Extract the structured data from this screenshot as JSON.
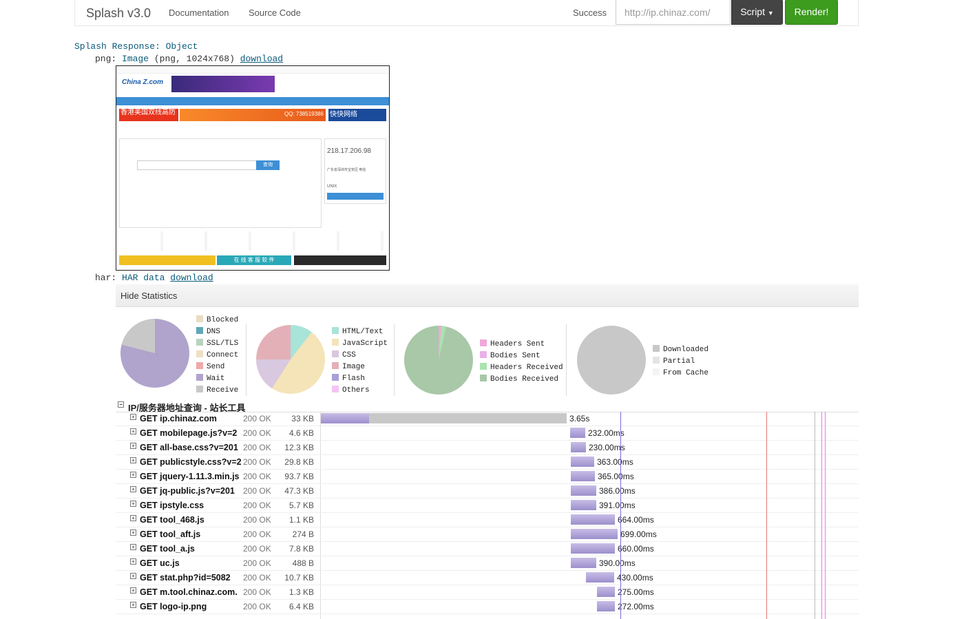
{
  "navbar": {
    "brand": "Splash v3.0",
    "links": [
      "Documentation",
      "Source Code"
    ],
    "status": "Success",
    "url_value": "http://ip.chinaz.com/",
    "script_label": "Script",
    "render_label": "Render!"
  },
  "response": {
    "title": "Splash Response: Object",
    "png_key": "png:",
    "png_type": "Image",
    "png_meta": "(png, 1024x768)",
    "png_download": "download",
    "har_key": "har:",
    "har_type": "HAR data",
    "har_download": "download"
  },
  "thumbnail": {
    "logo": "China Z.com",
    "ip_value": "218.17.206.98",
    "location": "广东省深圳市宝安区 电信",
    "os": "UNIX",
    "banner": "香港美国双线高防",
    "qq": "QQ: 738519386",
    "brand2": "快快网络",
    "online": "在 线 客 服 软 件",
    "search_button": "查询"
  },
  "stats": {
    "toggle_label": "Hide Statistics",
    "legend1": [
      {
        "label": "Blocked",
        "color": "#e8dcc4"
      },
      {
        "label": "DNS",
        "color": "#5fa8b8"
      },
      {
        "label": "SSL/TLS",
        "color": "#b8d4c0"
      },
      {
        "label": "Connect",
        "color": "#efe0c4"
      },
      {
        "label": "Send",
        "color": "#f0a8a8"
      },
      {
        "label": "Wait",
        "color": "#b0a4cc"
      },
      {
        "label": "Receive",
        "color": "#c8c8c8"
      }
    ],
    "legend2": [
      {
        "label": "HTML/Text",
        "color": "#a8e4d8"
      },
      {
        "label": "JavaScript",
        "color": "#f4e4b8"
      },
      {
        "label": "CSS",
        "color": "#d8c8e0"
      },
      {
        "label": "Image",
        "color": "#e4b0b8"
      },
      {
        "label": "Flash",
        "color": "#a8a0d8"
      },
      {
        "label": "Others",
        "color": "#f4c4f4"
      }
    ],
    "legend3": [
      {
        "label": "Headers Sent",
        "color": "#f0a8d8"
      },
      {
        "label": "Bodies Sent",
        "color": "#e8b0e8"
      },
      {
        "label": "Headers Received",
        "color": "#a8e4b0"
      },
      {
        "label": "Bodies Received",
        "color": "#a8c8a8"
      }
    ],
    "legend4": [
      {
        "label": "Downloaded",
        "color": "#c8c8c8"
      },
      {
        "label": "Partial",
        "color": "#e4e4e4"
      },
      {
        "label": "From Cache",
        "color": "#f4f4f4"
      }
    ]
  },
  "har": {
    "page_title": "IP/服务器地址查询 - 站长工具",
    "rows": [
      {
        "url": "GET ip.chinaz.com",
        "status": "200 OK",
        "size": "33 KB",
        "time": "3.65s"
      },
      {
        "url": "GET mobilepage.js?v=2",
        "status": "200 OK",
        "size": "4.6 KB",
        "time": "232.00ms"
      },
      {
        "url": "GET all-base.css?v=201",
        "status": "200 OK",
        "size": "12.3 KB",
        "time": "230.00ms"
      },
      {
        "url": "GET publicstyle.css?v=2",
        "status": "200 OK",
        "size": "29.8 KB",
        "time": "363.00ms"
      },
      {
        "url": "GET jquery-1.11.3.min.js",
        "status": "200 OK",
        "size": "93.7 KB",
        "time": "365.00ms"
      },
      {
        "url": "GET jq-public.js?v=201",
        "status": "200 OK",
        "size": "47.3 KB",
        "time": "386.00ms"
      },
      {
        "url": "GET ipstyle.css",
        "status": "200 OK",
        "size": "5.7 KB",
        "time": "391.00ms"
      },
      {
        "url": "GET tool_468.js",
        "status": "200 OK",
        "size": "1.1 KB",
        "time": "664.00ms"
      },
      {
        "url": "GET tool_aft.js",
        "status": "200 OK",
        "size": "274 B",
        "time": "699.00ms"
      },
      {
        "url": "GET tool_a.js",
        "status": "200 OK",
        "size": "7.8 KB",
        "time": "660.00ms"
      },
      {
        "url": "GET uc.js",
        "status": "200 OK",
        "size": "488 B",
        "time": "390.00ms"
      },
      {
        "url": "GET stat.php?id=5082",
        "status": "200 OK",
        "size": "10.7 KB",
        "time": "430.00ms"
      },
      {
        "url": "GET m.tool.chinaz.com.",
        "status": "200 OK",
        "size": "1.3 KB",
        "time": "275.00ms"
      },
      {
        "url": "GET logo-ip.png",
        "status": "200 OK",
        "size": "6.4 KB",
        "time": "272.00ms"
      }
    ]
  }
}
